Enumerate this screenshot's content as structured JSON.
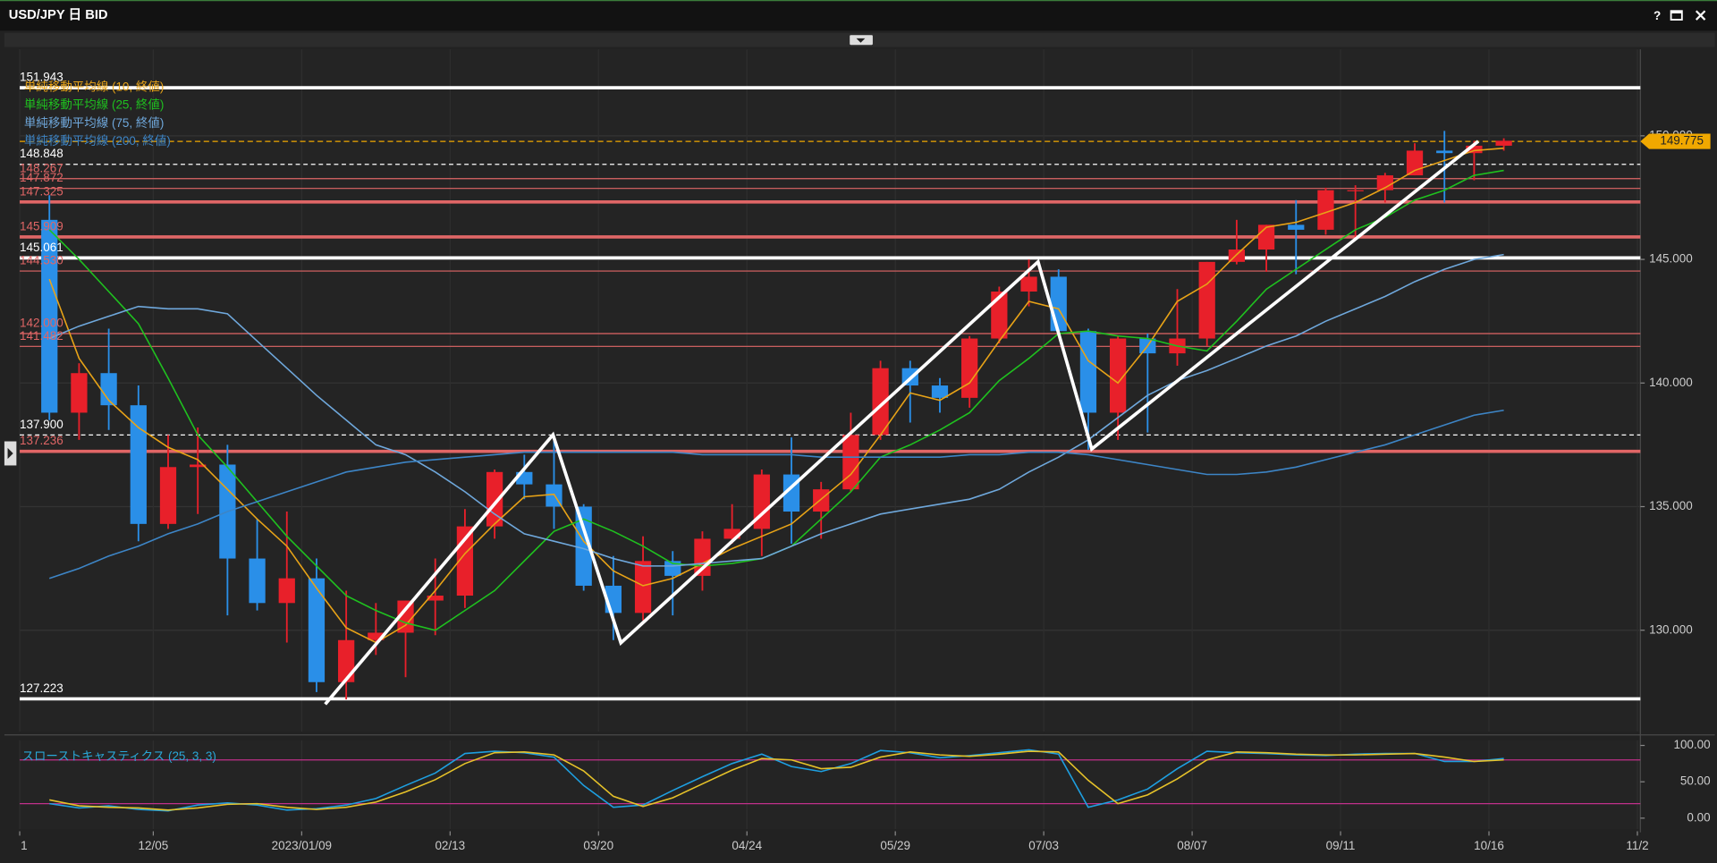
{
  "window": {
    "title": "USD/JPY 日 BID",
    "help": "?"
  },
  "chart_data": [
    {
      "type": "candlestick",
      "up_color": "#e8202a",
      "down_color": "#2a8fe8",
      "open": [
        146.6,
        138.8,
        140.4,
        139.1,
        134.3,
        136.6,
        136.7,
        132.9,
        131.1,
        132.1,
        127.9,
        129.6,
        129.9,
        131.2,
        131.4,
        134.2,
        136.4,
        135.9,
        135.0,
        131.8,
        130.7,
        132.8,
        132.2,
        133.7,
        134.1,
        136.3,
        134.8,
        135.7,
        137.9,
        140.6,
        139.9,
        139.4,
        141.8,
        143.7,
        144.3,
        142.1,
        138.8,
        141.8,
        141.2,
        141.8,
        144.9,
        145.4,
        146.4,
        146.2,
        147.8,
        147.8,
        148.4,
        149.4,
        149.3,
        149.6
      ],
      "high": [
        147.6,
        140.8,
        142.2,
        139.9,
        137.9,
        138.2,
        137.5,
        134.5,
        134.8,
        132.9,
        131.6,
        131.1,
        131.2,
        132.9,
        134.9,
        136.5,
        137.1,
        137.9,
        135.1,
        133.0,
        133.8,
        133.2,
        134.0,
        135.1,
        136.5,
        137.8,
        136.0,
        138.8,
        140.9,
        140.9,
        140.2,
        141.9,
        143.9,
        145.0,
        144.6,
        142.2,
        141.9,
        142.0,
        143.8,
        144.9,
        146.6,
        146.4,
        147.4,
        147.9,
        148.0,
        148.5,
        149.7,
        150.2,
        149.8,
        149.9
      ],
      "low": [
        138.5,
        137.7,
        138.1,
        133.6,
        134.1,
        134.7,
        130.6,
        130.8,
        129.5,
        127.5,
        127.2,
        129.0,
        128.1,
        129.8,
        130.9,
        133.7,
        135.3,
        134.1,
        131.6,
        129.6,
        130.4,
        130.6,
        131.6,
        133.5,
        133.0,
        133.5,
        133.7,
        135.6,
        137.7,
        138.4,
        138.8,
        139.0,
        141.6,
        143.1,
        142.1,
        137.3,
        137.7,
        138.0,
        140.7,
        141.5,
        144.8,
        144.5,
        144.4,
        146.0,
        145.9,
        147.3,
        148.4,
        147.3,
        148.2,
        149.4
      ],
      "close": [
        138.8,
        140.4,
        139.1,
        134.3,
        136.6,
        136.7,
        132.9,
        131.1,
        132.1,
        127.9,
        129.6,
        129.9,
        131.2,
        131.4,
        134.2,
        136.4,
        135.9,
        135.0,
        131.8,
        130.7,
        132.8,
        132.2,
        133.7,
        134.1,
        136.3,
        134.8,
        135.7,
        137.9,
        140.6,
        139.9,
        139.4,
        141.8,
        143.7,
        144.3,
        142.1,
        138.8,
        141.8,
        141.2,
        141.8,
        144.9,
        145.4,
        146.4,
        146.2,
        147.8,
        147.8,
        148.4,
        149.4,
        149.3,
        149.6,
        149.8
      ],
      "series": [
        {
          "name": "単純移動平均線 (10, 終値)",
          "color": "#e8a317",
          "values": [
            144.2,
            141.0,
            139.3,
            138.2,
            137.4,
            136.9,
            135.7,
            134.5,
            133.4,
            131.7,
            130.1,
            129.5,
            130.2,
            131.6,
            133.1,
            134.3,
            135.4,
            135.5,
            133.6,
            132.4,
            131.8,
            132.1,
            132.7,
            133.3,
            133.8,
            134.3,
            135.3,
            136.3,
            137.9,
            139.6,
            139.3,
            140.0,
            141.7,
            143.3,
            143.0,
            140.9,
            140.0,
            141.5,
            143.3,
            144.0,
            145.2,
            146.3,
            146.5,
            146.9,
            147.3,
            147.9,
            148.6,
            149.0,
            149.4,
            149.5
          ]
        },
        {
          "name": "単純移動平均線 (25, 終値)",
          "color": "#1fc11f",
          "values": [
            146.2,
            145.0,
            143.7,
            142.4,
            140.2,
            137.9,
            136.6,
            135.2,
            133.8,
            132.6,
            131.4,
            130.8,
            130.3,
            130.0,
            130.8,
            131.6,
            132.8,
            134.0,
            134.5,
            134.0,
            133.4,
            132.7,
            132.6,
            132.7,
            132.9,
            133.4,
            134.5,
            135.6,
            137.0,
            137.5,
            138.1,
            138.8,
            140.1,
            141.0,
            142.0,
            142.1,
            141.9,
            141.8,
            141.5,
            141.3,
            142.5,
            143.8,
            144.6,
            145.4,
            146.2,
            146.7,
            147.4,
            147.8,
            148.4,
            148.6
          ]
        },
        {
          "name": "単純移動平均線 (75, 終値)",
          "color": "#6fa8dc",
          "values": [
            141.8,
            142.3,
            142.7,
            143.1,
            143.0,
            143.0,
            142.8,
            141.7,
            140.6,
            139.5,
            138.5,
            137.5,
            137.1,
            136.4,
            135.6,
            134.7,
            133.9,
            133.6,
            133.3,
            132.9,
            132.6,
            132.6,
            132.7,
            132.8,
            132.9,
            133.4,
            133.9,
            134.3,
            134.7,
            134.9,
            135.1,
            135.3,
            135.7,
            136.4,
            137.0,
            137.7,
            138.6,
            139.5,
            140.1,
            140.5,
            141.0,
            141.5,
            141.9,
            142.5,
            143.0,
            143.5,
            144.1,
            144.6,
            145.0,
            145.2
          ]
        },
        {
          "name": "単純移動平均線 (200, 終値)",
          "color": "#3d85c6",
          "values": [
            132.1,
            132.5,
            133.0,
            133.4,
            133.9,
            134.3,
            134.8,
            135.2,
            135.6,
            136.0,
            136.4,
            136.6,
            136.8,
            136.9,
            137.0,
            137.1,
            137.2,
            137.2,
            137.2,
            137.2,
            137.2,
            137.2,
            137.1,
            137.1,
            137.1,
            137.1,
            137.0,
            137.0,
            137.0,
            137.0,
            137.0,
            137.1,
            137.1,
            137.2,
            137.2,
            137.1,
            136.9,
            136.7,
            136.5,
            136.3,
            136.3,
            136.4,
            136.6,
            136.9,
            137.2,
            137.5,
            137.9,
            138.3,
            138.7,
            138.9
          ]
        }
      ],
      "levels": [
        {
          "value": 151.943,
          "color": "#ffffff",
          "thick": true
        },
        {
          "value": 148.848,
          "color": "#ffffff",
          "thick": false
        },
        {
          "value": 148.267,
          "color": "#e06666",
          "thick": false
        },
        {
          "value": 147.872,
          "color": "#e06666",
          "thick": false
        },
        {
          "value": 147.325,
          "color": "#e06666",
          "thick": true
        },
        {
          "value": 145.909,
          "color": "#e06666",
          "thick": true
        },
        {
          "value": 145.061,
          "color": "#ffffff",
          "thick": true
        },
        {
          "value": 144.53,
          "label": "144.530",
          "color": "#e06666",
          "thick": false
        },
        {
          "value": 142,
          "label": "142.000",
          "color": "#e06666",
          "thick": false
        },
        {
          "value": 141.482,
          "color": "#e06666",
          "thick": false
        },
        {
          "value": 137.9,
          "label": "137.900",
          "color": "#ffffff",
          "thick": false
        },
        {
          "value": 137.236,
          "color": "#e06666",
          "thick": true
        },
        {
          "value": 127.223,
          "color": "#ffffff",
          "thick": true
        }
      ],
      "last": 149.775,
      "last_color": "#f0a800",
      "xlim": [
        -0.5,
        54.1
      ],
      "xticks": [
        {
          "value": -0.5,
          "label": "1"
        },
        {
          "value": 4,
          "label": "12/05"
        },
        {
          "value": 9,
          "label": "2023/01/09"
        },
        {
          "value": 14,
          "label": "02/13"
        },
        {
          "value": 19,
          "label": "03/20"
        },
        {
          "value": 24,
          "label": "04/24"
        },
        {
          "value": 29,
          "label": "05/29"
        },
        {
          "value": 34,
          "label": "07/03"
        },
        {
          "value": 39,
          "label": "08/07"
        },
        {
          "value": 44,
          "label": "09/11"
        },
        {
          "value": 49,
          "label": "10/16"
        },
        {
          "value": 54,
          "label": "11/2"
        }
      ],
      "ylim": [
        125.9,
        153.5
      ],
      "yticks": [
        {
          "value": 130,
          "label": "130.000"
        },
        {
          "value": 135,
          "label": "135.000"
        },
        {
          "value": 140,
          "label": "140.000"
        },
        {
          "value": 145,
          "label": "145.000"
        },
        {
          "value": 150,
          "label": "150.000"
        }
      ],
      "grid": true
    },
    {
      "type": "line",
      "title": "スローストキャスティクス (25, 3, 3)",
      "title_color": "#2aa8d8",
      "series": [
        {
          "color": "#1e9fe0",
          "values": [
            20,
            14,
            17,
            12,
            10,
            18,
            21,
            18,
            11,
            13,
            18,
            27,
            45,
            62,
            89,
            92,
            90,
            84,
            45,
            15,
            18,
            38,
            57,
            75,
            88,
            71,
            64,
            75,
            93,
            90,
            83,
            86,
            90,
            94,
            88,
            15,
            25,
            40,
            68,
            92,
            90,
            89,
            87,
            86,
            88,
            89,
            89,
            78,
            78,
            82
          ]
        },
        {
          "color": "#e6c229",
          "values": [
            25,
            17,
            15,
            14,
            11,
            14,
            19,
            20,
            15,
            12,
            15,
            22,
            36,
            53,
            75,
            90,
            91,
            87,
            65,
            30,
            16,
            28,
            47,
            66,
            82,
            80,
            68,
            70,
            84,
            91,
            87,
            85,
            88,
            92,
            91,
            52,
            20,
            32,
            54,
            80,
            91,
            90,
            88,
            87,
            87,
            88,
            89,
            84,
            78,
            80
          ]
        }
      ],
      "hlines": [
        20,
        80
      ],
      "hline_color": "#c0308a",
      "ylim": [
        -15,
        107
      ],
      "yticks": [
        {
          "value": 100,
          "label": "100.00"
        },
        {
          "value": 50,
          "label": "50.00"
        },
        {
          "value": 0,
          "label": "0.00"
        }
      ]
    }
  ]
}
